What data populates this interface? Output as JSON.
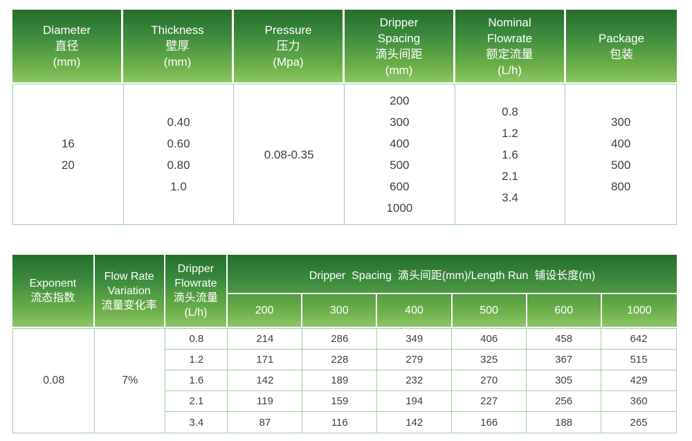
{
  "colors": {
    "header_gradient_top": "#256e2b",
    "header_gradient_bottom": "#8dc668",
    "header_text": "#ffffff",
    "body_border": "#a0cfa0",
    "body_text": "#3f3f3f"
  },
  "table1": {
    "columns": [
      {
        "label_en": "Diameter",
        "label_zh": "直径",
        "unit": "(mm)",
        "values": [
          "16",
          "20"
        ]
      },
      {
        "label_en": "Thickness",
        "label_zh": "壁厚",
        "unit": "(mm)",
        "values": [
          "0.40",
          "0.60",
          "0.80",
          "1.0"
        ]
      },
      {
        "label_en": "Pressure",
        "label_zh": "压力",
        "unit": "(Mpa)",
        "values": [
          "0.08-0.35"
        ]
      },
      {
        "label_en": "Dripper\nSpacing",
        "label_zh": "滴头间距",
        "unit": "(mm)",
        "values": [
          "200",
          "300",
          "400",
          "500",
          "600",
          "1000"
        ]
      },
      {
        "label_en": "Nominal\nFlowrate",
        "label_zh": "额定流量",
        "unit": "(L/h)",
        "values": [
          "0.8",
          "1.2",
          "1.6",
          "2.1",
          "3.4"
        ]
      },
      {
        "label_en": "Package",
        "label_zh": "包装",
        "values": [
          "300",
          "400",
          "500",
          "800"
        ]
      }
    ]
  },
  "table2": {
    "exponent": {
      "label_en": "Exponent",
      "label_zh": "流态指数",
      "value": "0.08"
    },
    "flow_rate_variation": {
      "label_en": "Flow Rate\nVariation",
      "label_zh": "流量变化率",
      "value": "7%"
    },
    "dripper_flowrate": {
      "label_en": "Dripper\nFlowrate",
      "label_zh": "滴头流量",
      "unit": "(L/h)"
    },
    "spacing_header": "Dripper  Spacing  滴头间距(mm)/Length Run  铺设长度(m)",
    "spacing_columns": [
      "200",
      "300",
      "400",
      "500",
      "600",
      "1000"
    ],
    "rows": [
      {
        "flowrate": "0.8",
        "lengths": [
          "214",
          "286",
          "349",
          "406",
          "458",
          "642"
        ]
      },
      {
        "flowrate": "1.2",
        "lengths": [
          "171",
          "228",
          "279",
          "325",
          "367",
          "515"
        ]
      },
      {
        "flowrate": "1.6",
        "lengths": [
          "142",
          "189",
          "232",
          "270",
          "305",
          "429"
        ]
      },
      {
        "flowrate": "2.1",
        "lengths": [
          "119",
          "159",
          "194",
          "227",
          "256",
          "360"
        ]
      },
      {
        "flowrate": "3.4",
        "lengths": [
          "87",
          "116",
          "142",
          "166",
          "188",
          "265"
        ]
      }
    ]
  }
}
